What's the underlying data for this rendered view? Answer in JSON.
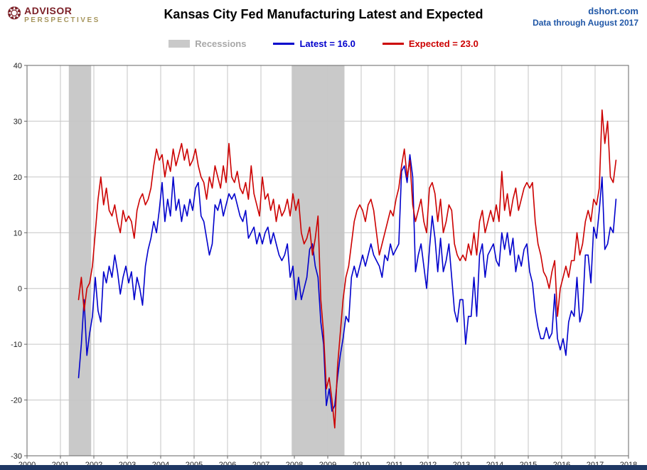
{
  "header": {
    "logo": {
      "line1": "ADVISOR",
      "line2": "PERSPECTIVES"
    },
    "title": "Kansas City Fed Manufacturing Latest and Expected",
    "source": "dshort.com",
    "data_through": "Data through August 2017"
  },
  "legend": {
    "recessions_label": "Recessions",
    "latest_label": "Latest = 16.0",
    "expected_label": "Expected = 23.0"
  },
  "colors": {
    "latest": "#0000cc",
    "expected": "#cc0000",
    "recession": "#c9c9c9",
    "grid": "#c6c6c6",
    "axis": "#666666",
    "tick_text": "#222222",
    "accent_blue": "#2057a7",
    "logo_red": "#7c2128",
    "logo_gold": "#a6955c",
    "footer": "#1f3864"
  },
  "chart_data": {
    "type": "line",
    "title": "Kansas City Fed Manufacturing Latest and Expected",
    "xlabel": "",
    "ylabel": "",
    "frequency": "monthly",
    "x_start": {
      "year": 2001,
      "month": 7
    },
    "x_end": {
      "year": 2017,
      "month": 8
    },
    "x_axis": {
      "min": 2000,
      "max": 2018,
      "ticks": [
        2000,
        2001,
        2002,
        2003,
        2004,
        2005,
        2006,
        2007,
        2008,
        2009,
        2010,
        2011,
        2012,
        2013,
        2014,
        2015,
        2016,
        2017,
        2018
      ]
    },
    "y_axis": {
      "min": -30,
      "max": 40,
      "ticks": [
        -30,
        -20,
        -10,
        0,
        10,
        20,
        30,
        40
      ]
    },
    "grid": true,
    "legend_position": "top",
    "recessions": [
      [
        2001.25,
        2001.92
      ],
      [
        2007.92,
        2009.5
      ]
    ],
    "series": [
      {
        "name": "Latest",
        "color": "#0000cc",
        "last_value": 16.0,
        "values": [
          -16,
          -10,
          -2,
          -12,
          -8,
          -5,
          2,
          -4,
          -6,
          3,
          1,
          4,
          2,
          6,
          3,
          -1,
          2,
          4,
          1,
          3,
          -2,
          2,
          0,
          -3,
          4,
          7,
          9,
          12,
          10,
          14,
          19,
          12,
          16,
          13,
          20,
          14,
          16,
          12,
          15,
          13,
          16,
          14,
          18,
          19,
          13,
          12,
          9,
          6,
          8,
          15,
          14,
          16,
          13,
          15,
          17,
          16,
          17,
          15,
          13,
          12,
          14,
          9,
          10,
          11,
          8,
          10,
          8,
          10,
          11,
          8,
          10,
          8,
          6,
          5,
          6,
          8,
          2,
          4,
          -2,
          2,
          -2,
          0,
          2,
          7,
          8,
          4,
          2,
          -6,
          -10,
          -21,
          -18,
          -22,
          -21,
          -16,
          -12,
          -9,
          -5,
          -6,
          2,
          4,
          2,
          4,
          6,
          4,
          6,
          8,
          6,
          5,
          4,
          2,
          6,
          5,
          8,
          6,
          7,
          8,
          21,
          22,
          19,
          24,
          20,
          3,
          6,
          8,
          4,
          0,
          7,
          13,
          9,
          3,
          9,
          3,
          5,
          8,
          2,
          -4,
          -6,
          -2,
          -2,
          -10,
          -5,
          -5,
          2,
          -5,
          6,
          8,
          2,
          6,
          7,
          8,
          5,
          4,
          10,
          7,
          10,
          6,
          9,
          3,
          6,
          4,
          7,
          8,
          3,
          1,
          -4,
          -7,
          -9,
          -9,
          -7,
          -9,
          -8,
          -1,
          -9,
          -11,
          -9,
          -12,
          -6,
          -4,
          -5,
          2,
          -6,
          -4,
          6,
          6,
          1,
          11,
          9,
          14,
          20,
          7,
          8,
          11,
          10,
          16
        ]
      },
      {
        "name": "Expected",
        "color": "#cc0000",
        "last_value": 23.0,
        "values": [
          -2,
          2,
          -4,
          0,
          1,
          4,
          10,
          16,
          20,
          15,
          18,
          14,
          13,
          15,
          12,
          10,
          14,
          12,
          13,
          12,
          9,
          14,
          16,
          17,
          15,
          16,
          18,
          22,
          25,
          23,
          24,
          20,
          23,
          21,
          25,
          22,
          24,
          26,
          23,
          25,
          22,
          23,
          25,
          22,
          20,
          19,
          16,
          20,
          18,
          22,
          20,
          18,
          22,
          19,
          26,
          20,
          19,
          21,
          18,
          17,
          19,
          16,
          22,
          17,
          15,
          13,
          20,
          16,
          17,
          14,
          16,
          12,
          15,
          13,
          14,
          16,
          13,
          17,
          14,
          16,
          10,
          8,
          9,
          11,
          6,
          9,
          13,
          -2,
          -8,
          -18,
          -16,
          -20,
          -25,
          -14,
          -8,
          -2,
          2,
          4,
          8,
          12,
          14,
          15,
          14,
          12,
          15,
          16,
          14,
          10,
          6,
          8,
          10,
          12,
          14,
          13,
          16,
          18,
          22,
          25,
          20,
          23,
          15,
          12,
          14,
          16,
          12,
          10,
          18,
          19,
          17,
          12,
          16,
          10,
          12,
          15,
          14,
          8,
          6,
          5,
          6,
          5,
          8,
          6,
          10,
          6,
          12,
          14,
          10,
          12,
          14,
          12,
          15,
          12,
          21,
          14,
          17,
          13,
          16,
          18,
          14,
          16,
          18,
          19,
          18,
          19,
          12,
          8,
          6,
          3,
          2,
          0,
          3,
          5,
          -5,
          0,
          2,
          4,
          2,
          5,
          5,
          10,
          6,
          8,
          12,
          14,
          12,
          16,
          15,
          18,
          32,
          26,
          30,
          20,
          19,
          23
        ]
      }
    ]
  }
}
